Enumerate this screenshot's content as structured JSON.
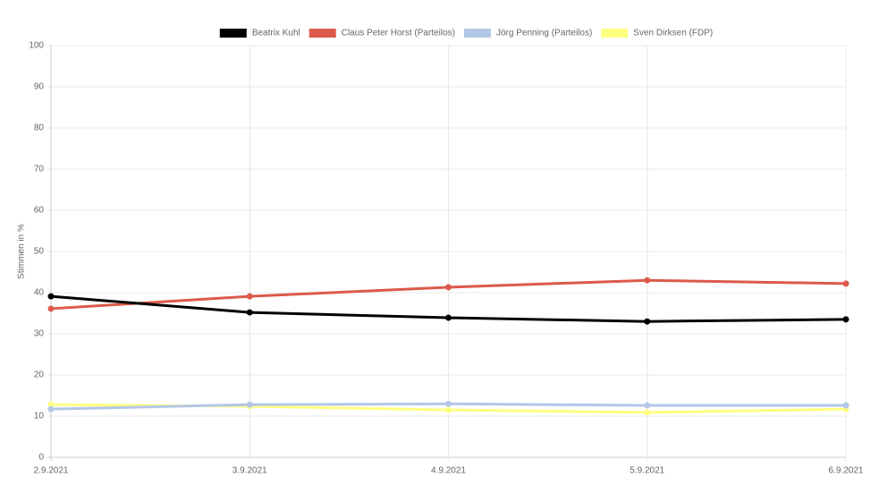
{
  "chart_data": {
    "type": "line",
    "y_label": "Stimmen in %",
    "categories": [
      "2.9.2021",
      "3.9.2021",
      "4.9.2021",
      "5.9.2021",
      "6.9.2021"
    ],
    "series": [
      {
        "name": "Beatrix Kuhl",
        "color": "#000000",
        "values": [
          39.1,
          35.2,
          33.9,
          33.0,
          33.5
        ]
      },
      {
        "name": "Claus Peter Horst (Parteilos)",
        "color": "#dc5a4b",
        "values": [
          36.1,
          39.1,
          41.3,
          43.0,
          42.2
        ]
      },
      {
        "name": "Jörg Penning (Parteilos)",
        "color": "#b3c7e6",
        "values": [
          11.7,
          12.8,
          13.0,
          12.6,
          12.6
        ]
      },
      {
        "name": "Sven Dirksen (FDP)",
        "color": "#ffff80",
        "values": [
          12.8,
          12.4,
          11.5,
          10.9,
          11.7
        ]
      }
    ],
    "ylim": [
      0,
      100
    ],
    "yticks": [
      0,
      10,
      20,
      30,
      40,
      50,
      60,
      70,
      80,
      90,
      100
    ],
    "grid": true,
    "legend": "top"
  }
}
